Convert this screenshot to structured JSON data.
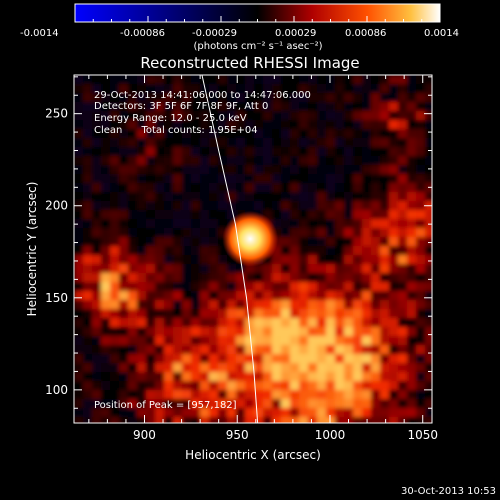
{
  "colorbar": {
    "ticks": [
      "-0.0014",
      "-0.00086",
      "-0.00029",
      "0.00029",
      "0.00086",
      "0.0014"
    ],
    "unit_label": "(photons cm⁻² s⁻¹ asec⁻²)"
  },
  "chart_data": {
    "type": "heatmap",
    "title": "Reconstructed RHESSI Image",
    "xlabel": "Heliocentric X (arcsec)",
    "ylabel": "Heliocentric Y (arcsec)",
    "xlim": [
      862,
      1055
    ],
    "ylim": [
      82,
      271
    ],
    "xticks": [
      900,
      950,
      1000,
      1050
    ],
    "yticks": [
      100,
      150,
      200,
      250
    ],
    "zlim": [
      -0.0014,
      0.0014
    ],
    "colormap": "blue-black-red-yellow-white",
    "peak": [
      957,
      182
    ],
    "limb_curve": [
      [
        931,
        271
      ],
      [
        940,
        230
      ],
      [
        949,
        190
      ],
      [
        955,
        150
      ],
      [
        959,
        110
      ],
      [
        961,
        82
      ]
    ],
    "annotations": [
      "29-Oct-2013 14:41:06.000 to 14:47:06.000",
      "Detectors: 3F 5F 6F 7F 8F 9F, Att 0",
      "Energy Range: 12.0 - 25.0 keV",
      "Clean      Total counts: 1.95E+04",
      "Position of Peak = [957,182]"
    ]
  },
  "footer": {
    "timestamp": "30-Oct-2013 10:53"
  }
}
